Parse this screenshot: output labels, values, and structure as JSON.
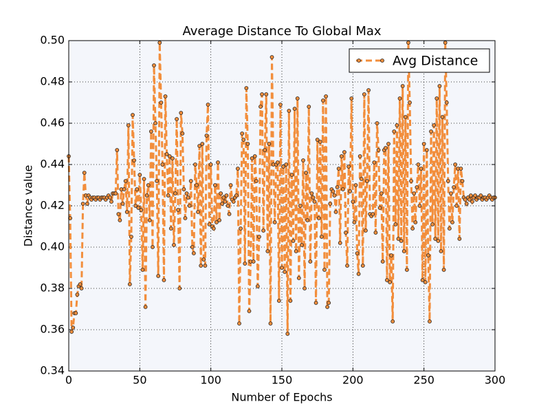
{
  "chart_data": {
    "type": "line",
    "title": "Average Distance To Global Max",
    "xlabel": "Number of Epochs",
    "ylabel": "Distance value",
    "x": [
      0,
      1,
      2,
      3,
      4,
      5,
      6,
      7,
      8,
      9,
      10,
      11,
      12,
      13,
      14,
      15,
      16,
      17,
      18,
      19,
      20,
      21,
      22,
      23,
      24,
      25,
      26,
      27,
      28,
      29,
      30,
      31,
      32,
      33,
      34,
      35,
      36,
      37,
      38,
      39,
      40,
      41,
      42,
      43,
      44,
      45,
      46,
      47,
      48,
      49,
      50,
      51,
      52,
      53,
      54,
      55,
      56,
      57,
      58,
      59,
      60,
      61,
      62,
      63,
      64,
      65,
      66,
      67,
      68,
      69,
      70,
      71,
      72,
      73,
      74,
      75,
      76,
      77,
      78,
      79,
      80,
      81,
      82,
      83,
      84,
      85,
      86,
      87,
      88,
      89,
      90,
      91,
      92,
      93,
      94,
      95,
      96,
      97,
      98,
      99,
      100,
      101,
      102,
      103,
      104,
      105,
      106,
      107,
      108,
      109,
      110,
      111,
      112,
      113,
      114,
      115,
      116,
      117,
      118,
      119,
      120,
      121,
      122,
      123,
      124,
      125,
      126,
      127,
      128,
      129,
      130,
      131,
      132,
      133,
      134,
      135,
      136,
      137,
      138,
      139,
      140,
      141,
      142,
      143,
      144,
      145,
      146,
      147,
      148,
      149,
      150,
      151,
      152,
      153,
      154,
      155,
      156,
      157,
      158,
      159,
      160,
      161,
      162,
      163,
      164,
      165,
      166,
      167,
      168,
      169,
      170,
      171,
      172,
      173,
      174,
      175,
      176,
      177,
      178,
      179,
      180,
      181,
      182,
      183,
      184,
      185,
      186,
      187,
      188,
      189,
      190,
      191,
      192,
      193,
      194,
      195,
      196,
      197,
      198,
      199,
      200,
      201,
      202,
      203,
      204,
      205,
      206,
      207,
      208,
      209,
      210,
      211,
      212,
      213,
      214,
      215,
      216,
      217,
      218,
      219,
      220,
      221,
      222,
      223,
      224,
      225,
      226,
      227,
      228,
      229,
      230,
      231,
      232,
      233,
      234,
      235,
      236,
      237,
      238,
      239,
      240,
      241,
      242,
      243,
      244,
      245,
      246,
      247,
      248,
      249,
      250,
      251,
      252,
      253,
      254,
      255,
      256,
      257,
      258,
      259,
      260,
      261,
      262,
      263,
      264,
      265,
      266,
      267,
      268,
      269,
      270,
      271,
      272,
      273,
      274,
      275,
      276,
      277,
      278,
      279,
      280,
      281,
      282,
      283,
      284,
      285,
      286,
      287,
      288,
      289,
      290,
      291,
      292,
      293,
      294,
      295,
      296,
      297,
      298,
      299,
      300
    ],
    "series": [
      {
        "name": "Avg Distance",
        "color": "#f28e3c",
        "values": [
          0.444,
          0.414,
          0.359,
          0.361,
          0.368,
          0.368,
          0.377,
          0.381,
          0.382,
          0.38,
          0.421,
          0.436,
          0.425,
          0.421,
          0.425,
          0.424,
          0.423,
          0.424,
          0.424,
          0.423,
          0.424,
          0.424,
          0.423,
          0.424,
          0.424,
          0.424,
          0.423,
          0.424,
          0.425,
          0.424,
          0.422,
          0.426,
          0.426,
          0.426,
          0.447,
          0.416,
          0.413,
          0.428,
          0.421,
          0.428,
          0.432,
          0.417,
          0.459,
          0.382,
          0.405,
          0.464,
          0.442,
          0.42,
          0.428,
          0.419,
          0.435,
          0.418,
          0.389,
          0.433,
          0.371,
          0.425,
          0.43,
          0.413,
          0.456,
          0.4,
          0.488,
          0.46,
          0.432,
          0.386,
          0.499,
          0.47,
          0.44,
          0.384,
          0.473,
          0.445,
          0.425,
          0.444,
          0.409,
          0.443,
          0.401,
          0.426,
          0.462,
          0.418,
          0.38,
          0.465,
          0.455,
          0.428,
          0.414,
          0.426,
          0.424,
          0.42,
          0.432,
          0.4,
          0.397,
          0.44,
          0.43,
          0.417,
          0.449,
          0.391,
          0.45,
          0.394,
          0.391,
          0.454,
          0.469,
          0.411,
          0.44,
          0.41,
          0.409,
          0.43,
          0.412,
          0.441,
          0.413,
          0.426,
          0.421,
          0.424,
          0.422,
          0.425,
          0.42,
          0.416,
          0.43,
          0.423,
          0.422,
          0.424,
          0.425,
          0.438,
          0.363,
          0.409,
          0.455,
          0.452,
          0.392,
          0.477,
          0.45,
          0.369,
          0.393,
          0.443,
          0.393,
          0.444,
          0.432,
          0.381,
          0.405,
          0.468,
          0.474,
          0.408,
          0.447,
          0.474,
          0.398,
          0.45,
          0.363,
          0.492,
          0.44,
          0.412,
          0.44,
          0.441,
          0.374,
          0.469,
          0.39,
          0.439,
          0.388,
          0.44,
          0.358,
          0.466,
          0.374,
          0.435,
          0.403,
          0.467,
          0.398,
          0.472,
          0.385,
          0.42,
          0.401,
          0.442,
          0.38,
          0.436,
          0.413,
          0.468,
          0.393,
          0.426,
          0.424,
          0.422,
          0.373,
          0.452,
          0.414,
          0.451,
          0.405,
          0.471,
          0.389,
          0.473,
          0.371,
          0.373,
          0.421,
          0.428,
          0.427,
          0.425,
          0.417,
          0.429,
          0.438,
          0.402,
          0.444,
          0.428,
          0.446,
          0.407,
          0.391,
          0.439,
          0.427,
          0.472,
          0.422,
          0.412,
          0.43,
          0.397,
          0.387,
          0.444,
          0.433,
          0.391,
          0.474,
          0.408,
          0.432,
          0.476,
          0.416,
          0.415,
          0.416,
          0.441,
          0.407,
          0.46,
          0.447,
          0.419,
          0.426,
          0.393,
          0.447,
          0.448,
          0.384,
          0.45,
          0.383,
          0.396,
          0.364,
          0.456,
          0.411,
          0.459,
          0.404,
          0.472,
          0.403,
          0.478,
          0.398,
          0.463,
          0.389,
          0.499,
          0.47,
          0.432,
          0.409,
          0.426,
          0.412,
          0.429,
          0.44,
          0.42,
          0.438,
          0.384,
          0.45,
          0.383,
          0.447,
          0.396,
          0.364,
          0.456,
          0.411,
          0.459,
          0.404,
          0.472,
          0.403,
          0.478,
          0.398,
          0.463,
          0.389,
          0.499,
          0.47,
          0.432,
          0.409,
          0.426,
          0.412,
          0.429,
          0.44,
          0.42,
          0.438,
          0.404,
          0.438,
          0.432,
          0.424,
          0.423,
          0.421,
          0.424,
          0.423,
          0.425,
          0.422,
          0.424,
          0.425,
          0.423,
          0.424,
          0.424,
          0.425,
          0.423,
          0.424,
          0.424,
          0.423,
          0.424,
          0.425,
          0.424,
          0.423,
          0.424,
          0.424
        ]
      }
    ],
    "xlim": [
      0,
      300
    ],
    "xticks": [
      0,
      50,
      100,
      150,
      200,
      250,
      300
    ],
    "ylim": [
      0.34,
      0.5
    ],
    "yticks": [
      0.34,
      0.36,
      0.38,
      {
        "value": 0.4,
        "label": "0.40"
      },
      0.42,
      0.44,
      0.46,
      0.48,
      {
        "value": 0.5,
        "label": "0.50"
      }
    ],
    "grid": true,
    "legend": "upper right"
  }
}
